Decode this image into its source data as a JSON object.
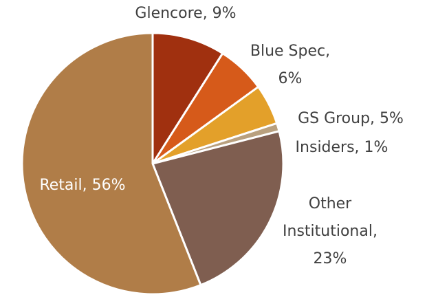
{
  "chart_data": {
    "type": "pie",
    "values": [
      9,
      6,
      5,
      1,
      23,
      56
    ],
    "value_labels": [
      [
        "Glencore, 9%"
      ],
      [
        "Blue Spec,",
        "6%"
      ],
      [
        "GS Group, 5%"
      ],
      [
        "Insiders, 1%"
      ],
      [
        "Other",
        "Institutional,",
        "23%"
      ],
      [
        "Retail, 56%"
      ]
    ],
    "colors": [
      "#a0300f",
      "#d65a1a",
      "#e3a02a",
      "#b9a07e",
      "#7f5e50",
      "#b07d48"
    ]
  }
}
